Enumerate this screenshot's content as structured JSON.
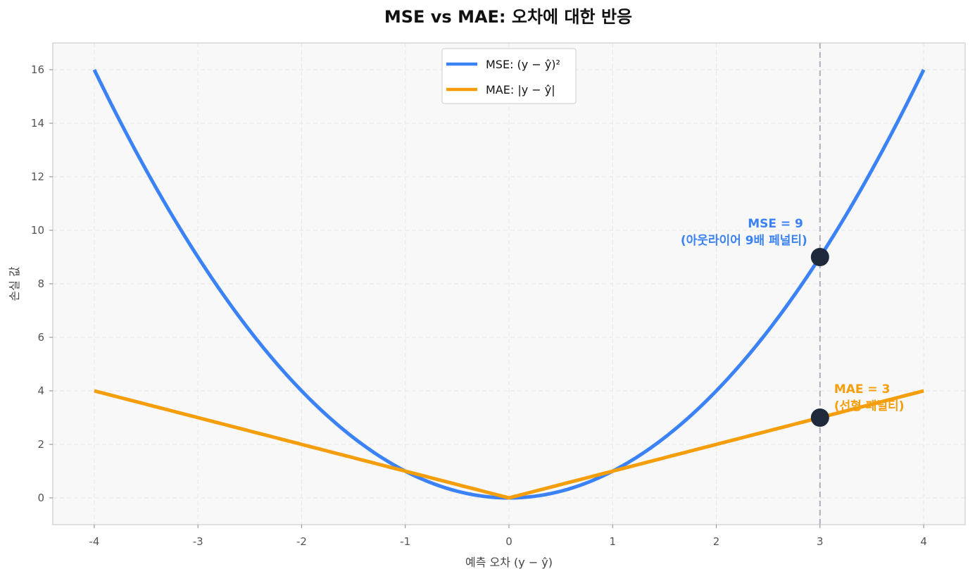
{
  "chart_data": {
    "type": "line",
    "title": "MSE vs MAE: 오차에 대한 반응",
    "xlabel": "예측 오차 (y − ŷ)",
    "ylabel": "손실 값",
    "xlim": [
      -4.4,
      4.4
    ],
    "ylim": [
      -1,
      17
    ],
    "xticks": [
      -4,
      -3,
      -2,
      -1,
      0,
      1,
      2,
      3,
      4
    ],
    "yticks": [
      0,
      2,
      4,
      6,
      8,
      10,
      12,
      14,
      16
    ],
    "grid": true,
    "legend_position": "top-center",
    "series": [
      {
        "name": "MSE: (y − ŷ)²",
        "formula": "square",
        "x_range": [
          -4,
          4
        ],
        "color": "#3b82f6"
      },
      {
        "name": "MAE: |y − ŷ|",
        "formula": "abs",
        "x_range": [
          -4,
          4
        ],
        "color": "#f59e0b"
      }
    ],
    "vline": {
      "x": 3,
      "color": "#aab0bb",
      "style": "dashed"
    },
    "points": [
      {
        "x": 3,
        "y": 9,
        "color": "#1e293b"
      },
      {
        "x": 3,
        "y": 3,
        "color": "#1e293b"
      }
    ],
    "annotations": [
      {
        "lines": [
          "MSE = 9",
          "(아웃라이어 9배 페널티)"
        ],
        "x": 3,
        "y": 9,
        "color": "#3b82f6",
        "align": "end"
      },
      {
        "lines": [
          "MAE = 3",
          "(선형 페널티)"
        ],
        "x": 3,
        "y": 3,
        "color": "#f59e0b",
        "align": "start"
      }
    ],
    "colors": {
      "plot_background": "#f8f8f8",
      "grid": "#e6e6e6",
      "frame": "#cccccc"
    }
  }
}
